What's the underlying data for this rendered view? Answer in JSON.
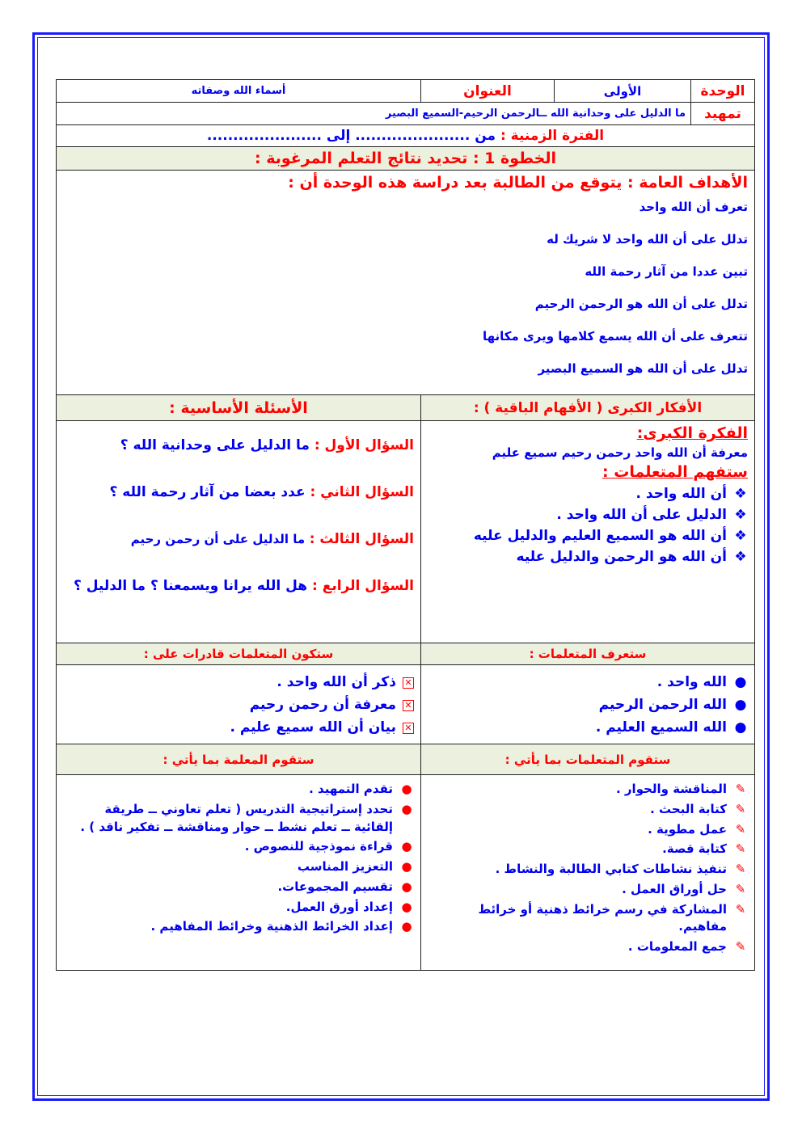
{
  "header": {
    "unit_label": "الوحدة",
    "unit_value": "الأولى",
    "title_label": "العنوان",
    "title_value": "أسماء الله وصفاته",
    "intro_label": "تمهيد",
    "intro_value": "ما الدليل على وحدانية الله ــالرحمن الرحيم-السميع البصير",
    "period_label": "الفترة الزمنية :",
    "period_from": "من ......................",
    "period_to": "إلى ......................"
  },
  "step1": "الخطوة 1 : تحديد نتائج التعلم المرغوبة :",
  "goals": {
    "heading": "الأهداف العامة : يتوقع من الطالبة بعد دراسة هذه الوحدة أن :",
    "items": [
      "تعرف أن الله واحد",
      "تدلل على أن الله واحد لا شريك له",
      "تبين عددا من آثار رحمة الله",
      "تدلل على أن الله هو الرحمن الرحيم",
      "تتعرف على أن الله يسمع كلامها ويرى مكانها",
      "تدلل على أن الله هو السميع البصير"
    ]
  },
  "big_ideas": {
    "header": "الأفكار الكبرى ( الأفهام الباقية ) :",
    "idea_label": "الفكرة الكبرى:",
    "idea_text": "معرفة أن الله واحد رحمن رحيم سميع عليم",
    "understand_label": "ستفهم المتعلمات :",
    "items": [
      "أن الله واحد .",
      "الدليل على أن الله واحد .",
      "أن الله هو السميع العليم والدليل عليه",
      "أن الله هو الرحمن والدليل عليه"
    ]
  },
  "questions": {
    "header": "الأسئلة الأساسية :",
    "items": [
      {
        "label": "السؤال الأول :",
        "text": "ما الدليل على وحدانية الله ؟"
      },
      {
        "label": "السؤال الثاني :",
        "text": "عدد بعضا من آثار رحمة الله ؟"
      },
      {
        "label": "السؤال الثالث :",
        "text": "ما الدليل على أن رحمن رحيم"
      },
      {
        "label": "السؤال الرابع :",
        "text": "هل الله يرانا ويسمعنا ؟ ما الدليل ؟"
      }
    ]
  },
  "know": {
    "header": "ستعرف المتعلمات :",
    "items": [
      "الله واحد .",
      "الله الرحمن الرحيم",
      "الله السميع العليم ."
    ]
  },
  "able": {
    "header": "ستكون المتعلمات قادرات على :",
    "items": [
      "ذكر أن الله واحد .",
      "معرفة أن رحمن رحيم",
      "بيان أن الله سميع عليم ."
    ]
  },
  "students_do": {
    "header": "ستقوم المتعلمات بما يأتي :",
    "items": [
      "المناقشة والحوار .",
      "كتابة البحث .",
      "عمل مطوية .",
      "كتابة قصة.",
      "تنفيذ نشاطات كتابي الطالبة والنشاط .",
      "حل أوراق العمل .",
      "المشاركة في رسم خرائط ذهنية أو خرائط مفاهيم.",
      "جمع المعلومات ."
    ]
  },
  "teacher_do": {
    "header": "ستقوم المعلمة بما يأتي :",
    "items": [
      "تقدم التمهيد .",
      "تحدد إستراتيجية التدريس ( تعلم تعاوني ــ طريقة إلقائية ــ تعلم نشط ــ حوار ومناقشة ــ تفكير ناقد ) .",
      "قراءة نموذجية للنصوص .",
      "التعزيز المناسب",
      "تقسيم المجموعات.",
      "إعداد أورق العمل.",
      "إعداد الخرائط الذهنية وخرائط المفاهيم ."
    ]
  },
  "colors": {
    "border": "#1a1aff",
    "label_red": "#ff0000",
    "text_blue": "#0000ee",
    "header_bg": "#ebf1de"
  }
}
